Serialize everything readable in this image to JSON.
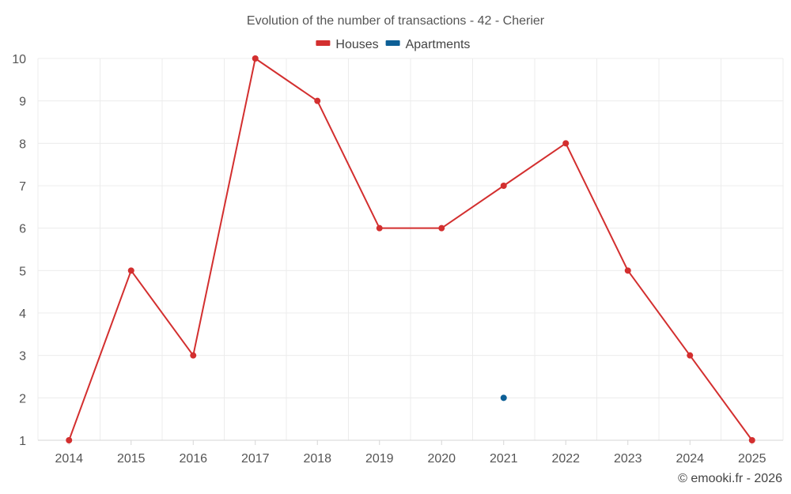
{
  "chart_data": {
    "type": "line",
    "title": "Evolution of the number of transactions - 42 - Cherier",
    "xlabel": "",
    "ylabel": "",
    "categories": [
      "2014",
      "2015",
      "2016",
      "2017",
      "2018",
      "2019",
      "2020",
      "2021",
      "2022",
      "2023",
      "2024",
      "2025"
    ],
    "ylim": [
      1,
      10
    ],
    "yticks": [
      1,
      2,
      3,
      4,
      5,
      6,
      7,
      8,
      9,
      10
    ],
    "grid": true,
    "legend_position": "top-center",
    "series": [
      {
        "name": "Houses",
        "color": "#d32f2f",
        "values": [
          1,
          5,
          3,
          10,
          9,
          6,
          6,
          7,
          8,
          5,
          3,
          1
        ]
      },
      {
        "name": "Apartments",
        "color": "#0d5f96",
        "values": [
          null,
          null,
          null,
          null,
          null,
          null,
          null,
          2,
          null,
          null,
          null,
          null
        ]
      }
    ]
  },
  "credit": "© emooki.fr - 2026"
}
